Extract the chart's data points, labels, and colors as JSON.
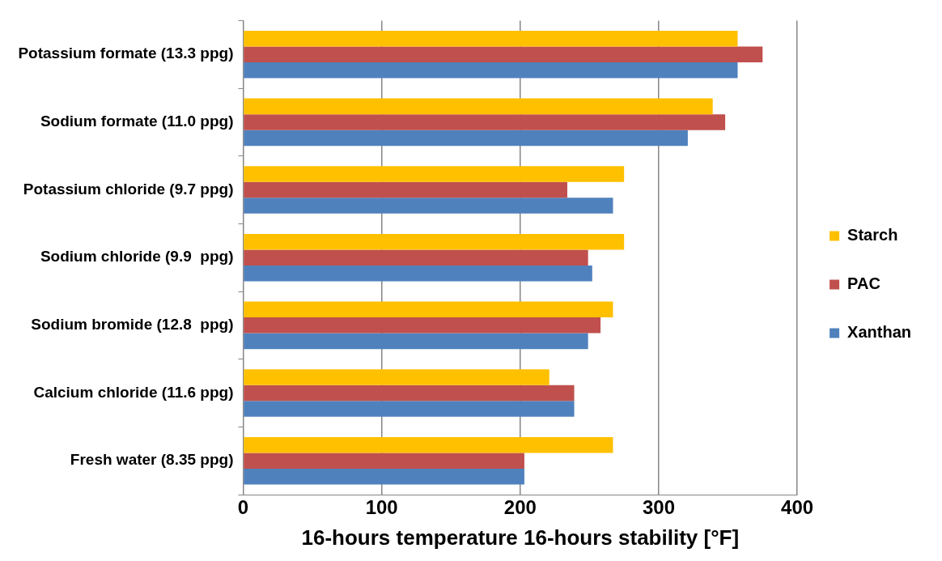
{
  "chart_data": {
    "type": "bar",
    "orientation": "horizontal",
    "xlabel": "16-hours temperature 16-hours stability [°F]",
    "categories": [
      "Potassium formate (13.3 ppg)",
      "Sodium formate (11.0 ppg)",
      "Potassium chloride (9.7 ppg)",
      "Sodium chloride (9.9  ppg)",
      "Sodium bromide (12.8  ppg)",
      "Calcium chloride (11.6 ppg)",
      "Fresh water (8.35 ppg)"
    ],
    "series": [
      {
        "name": "Starch",
        "color": "#ffc000",
        "values": [
          357,
          339,
          275,
          275,
          267,
          221,
          267
        ]
      },
      {
        "name": "PAC",
        "color": "#c0504d",
        "values": [
          375,
          348,
          234,
          249,
          258,
          239,
          203
        ]
      },
      {
        "name": "Xanthan",
        "color": "#4f81bd",
        "values": [
          357,
          321,
          267,
          252,
          249,
          239,
          203
        ]
      }
    ],
    "xlim": [
      0,
      400
    ],
    "xticks": [
      0,
      100,
      200,
      300,
      400
    ],
    "grid": "x",
    "legend": "right"
  }
}
